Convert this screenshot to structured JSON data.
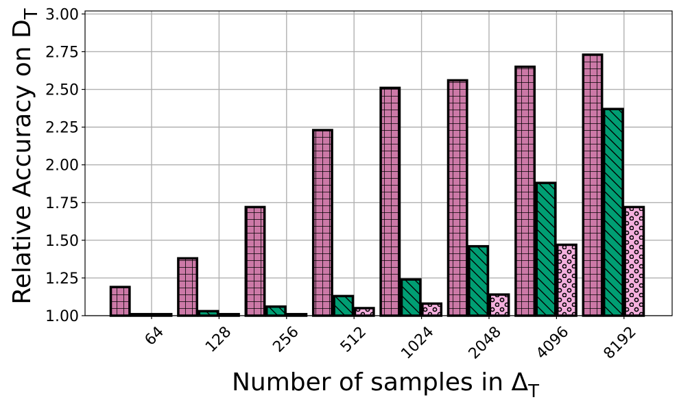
{
  "chart_data": {
    "type": "bar",
    "title": "",
    "xlabel": "Number of samples in Δ",
    "xlabel_sub": "T",
    "ylabel": "Relative Accuracy on D",
    "ylabel_sub": "T",
    "categories": [
      "64",
      "128",
      "256",
      "512",
      "1024",
      "2048",
      "4096",
      "8192"
    ],
    "ylim": [
      1.0,
      3.02
    ],
    "yticks": [
      "1.00",
      "1.25",
      "1.50",
      "1.75",
      "2.00",
      "2.25",
      "2.50",
      "2.75",
      "3.00"
    ],
    "grid": true,
    "series": [
      {
        "values": [
          1.19,
          1.38,
          1.72,
          2.23,
          2.51,
          2.56,
          2.65,
          2.73
        ],
        "color": "#cc79a7",
        "hatch": "grid"
      },
      {
        "values": [
          1.01,
          1.03,
          1.06,
          1.13,
          1.24,
          1.46,
          1.88,
          2.37
        ],
        "color": "#009e73",
        "hatch": "diagonal"
      },
      {
        "values": [
          1.01,
          1.01,
          1.01,
          1.05,
          1.08,
          1.14,
          1.47,
          1.72
        ],
        "color": "#f5b0de",
        "hatch": "circles"
      }
    ]
  }
}
